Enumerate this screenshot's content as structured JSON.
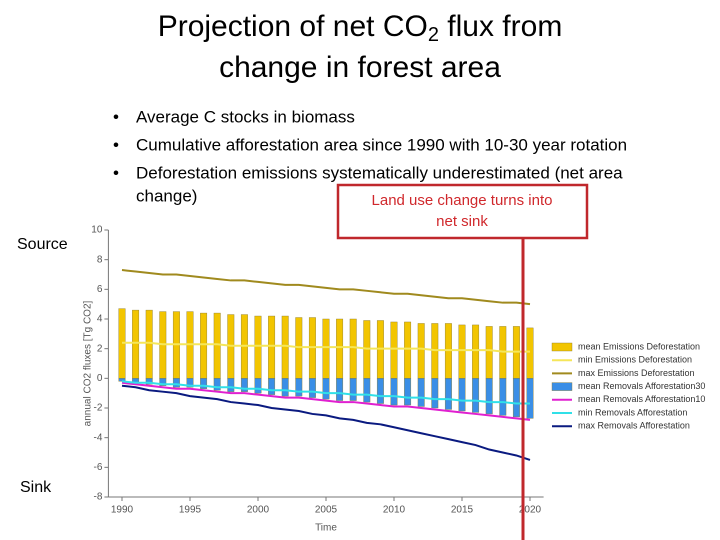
{
  "slide": {
    "title": {
      "part1": "Projection of net CO",
      "sub": "2",
      "part2": " flux from",
      "line2": "change in forest area"
    },
    "bullets": [
      "Average C stocks in biomass",
      "Cumulative afforestation area since 1990 with 10-30 year rotation",
      "Deforestation emissions systematically underestimated (net area",
      "change)"
    ],
    "callout": [
      "Land use change turns into",
      "net sink"
    ],
    "source_label": "Source",
    "sink_label": "Sink"
  },
  "chart_data": {
    "type": "bar",
    "x_label": "Time",
    "y_label": "annual CO2 fluxes [Tg CO2]",
    "x": [
      1990,
      1991,
      1992,
      1993,
      1994,
      1995,
      1996,
      1997,
      1998,
      1999,
      2000,
      2001,
      2002,
      2003,
      2004,
      2005,
      2006,
      2007,
      2008,
      2009,
      2010,
      2011,
      2012,
      2013,
      2014,
      2015,
      2016,
      2017,
      2018,
      2019,
      2020
    ],
    "xlim": [
      1989,
      2021
    ],
    "xticks": [
      1990,
      1995,
      2000,
      2005,
      2010,
      2015,
      2020
    ],
    "ylim": [
      -8,
      10
    ],
    "yticks": [
      -8,
      -6,
      -4,
      -2,
      0,
      2,
      4,
      6,
      8,
      10
    ],
    "legend": "right",
    "series": [
      {
        "name": "mean Emissions Deforestation",
        "type": "bar",
        "color": "#f2c500",
        "values": [
          4.7,
          4.6,
          4.6,
          4.5,
          4.5,
          4.5,
          4.4,
          4.4,
          4.3,
          4.3,
          4.2,
          4.2,
          4.2,
          4.1,
          4.1,
          4.0,
          4.0,
          4.0,
          3.9,
          3.9,
          3.8,
          3.8,
          3.7,
          3.7,
          3.7,
          3.6,
          3.6,
          3.5,
          3.5,
          3.5,
          3.4
        ]
      },
      {
        "name": "min Emissions Deforestation",
        "type": "line",
        "color": "#f5e65a",
        "values": [
          2.4,
          2.4,
          2.4,
          2.3,
          2.3,
          2.3,
          2.3,
          2.3,
          2.2,
          2.2,
          2.2,
          2.2,
          2.2,
          2.1,
          2.1,
          2.1,
          2.1,
          2.1,
          2.0,
          2.0,
          2.0,
          2.0,
          2.0,
          1.9,
          1.9,
          1.9,
          1.9,
          1.9,
          1.8,
          1.8,
          1.8
        ]
      },
      {
        "name": "max Emissions Deforestation",
        "type": "line",
        "color": "#a08a1e",
        "values": [
          7.3,
          7.2,
          7.1,
          7.0,
          7.0,
          6.9,
          6.8,
          6.7,
          6.6,
          6.6,
          6.5,
          6.4,
          6.3,
          6.3,
          6.2,
          6.1,
          6.0,
          6.0,
          5.9,
          5.8,
          5.7,
          5.7,
          5.6,
          5.5,
          5.4,
          5.4,
          5.3,
          5.2,
          5.1,
          5.1,
          5.0
        ]
      },
      {
        "name": "mean Removals Afforestation30",
        "type": "bar",
        "color": "#3a8ee6",
        "values": [
          -0.2,
          -0.3,
          -0.4,
          -0.5,
          -0.6,
          -0.6,
          -0.7,
          -0.8,
          -0.9,
          -0.9,
          -1.0,
          -1.1,
          -1.2,
          -1.2,
          -1.3,
          -1.4,
          -1.5,
          -1.5,
          -1.6,
          -1.7,
          -1.8,
          -1.8,
          -1.9,
          -2.0,
          -2.1,
          -2.2,
          -2.3,
          -2.4,
          -2.5,
          -2.6,
          -2.7
        ]
      },
      {
        "name": "mean Removals Afforestation10",
        "type": "line",
        "color": "#e020d0",
        "values": [
          -0.3,
          -0.4,
          -0.5,
          -0.6,
          -0.7,
          -0.7,
          -0.8,
          -0.9,
          -1.0,
          -1.0,
          -1.1,
          -1.2,
          -1.3,
          -1.3,
          -1.4,
          -1.5,
          -1.6,
          -1.6,
          -1.7,
          -1.8,
          -1.9,
          -1.9,
          -2.0,
          -2.1,
          -2.2,
          -2.3,
          -2.4,
          -2.5,
          -2.6,
          -2.7,
          -2.8
        ]
      },
      {
        "name": "min Removals Afforestation",
        "type": "line",
        "color": "#30e0e8",
        "values": [
          -0.2,
          -0.3,
          -0.3,
          -0.4,
          -0.4,
          -0.5,
          -0.5,
          -0.6,
          -0.6,
          -0.7,
          -0.7,
          -0.8,
          -0.8,
          -0.9,
          -0.9,
          -1.0,
          -1.0,
          -1.1,
          -1.1,
          -1.2,
          -1.2,
          -1.3,
          -1.3,
          -1.4,
          -1.4,
          -1.5,
          -1.5,
          -1.6,
          -1.6,
          -1.7,
          -1.7
        ]
      },
      {
        "name": "max Removals Afforestation",
        "type": "line",
        "color": "#0a1a80",
        "values": [
          -0.5,
          -0.6,
          -0.8,
          -0.9,
          -1.0,
          -1.2,
          -1.3,
          -1.4,
          -1.6,
          -1.7,
          -1.8,
          -2.0,
          -2.1,
          -2.2,
          -2.4,
          -2.5,
          -2.7,
          -2.8,
          -3.0,
          -3.1,
          -3.3,
          -3.5,
          -3.7,
          -3.9,
          -4.1,
          -4.3,
          -4.5,
          -4.8,
          -5.0,
          -5.2,
          -5.5
        ]
      }
    ]
  }
}
